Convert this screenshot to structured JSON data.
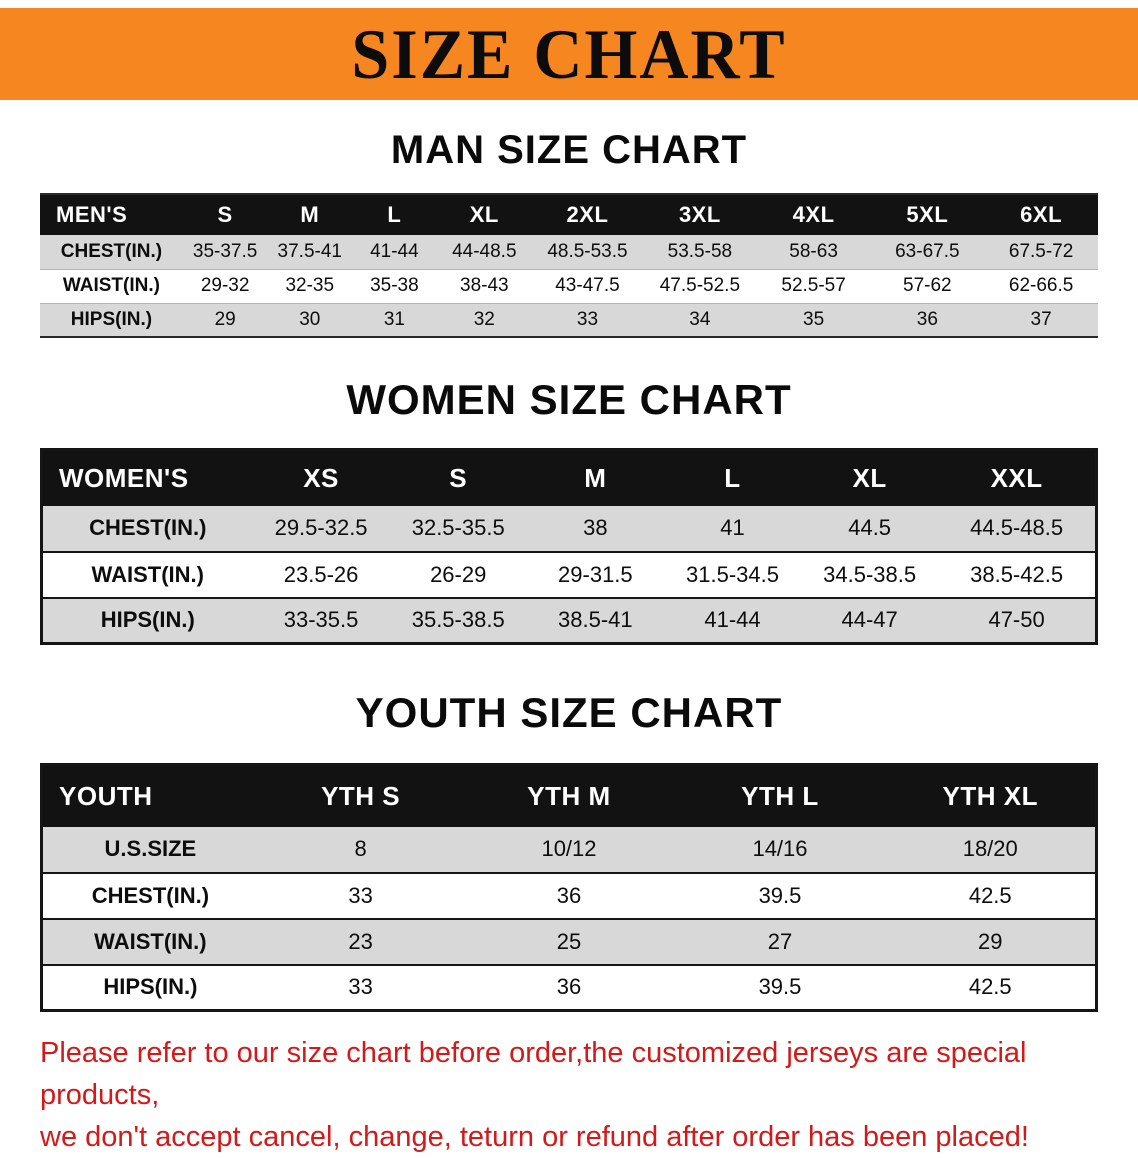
{
  "banner": {
    "title": "SIZE CHART",
    "bg_color": "#F6861F"
  },
  "sections": [
    {
      "id": "men",
      "heading": "MAN SIZE CHART",
      "header": [
        "MEN'S",
        "S",
        "M",
        "L",
        "XL",
        "2XL",
        "3XL",
        "4XL",
        "5XL",
        "6XL"
      ],
      "rows": [
        {
          "label": "CHEST(IN.)",
          "values": [
            "35-37.5",
            "37.5-41",
            "41-44",
            "44-48.5",
            "48.5-53.5",
            "53.5-58",
            "58-63",
            "63-67.5",
            "67.5-72"
          ]
        },
        {
          "label": "WAIST(IN.)",
          "values": [
            "29-32",
            "32-35",
            "35-38",
            "38-43",
            "43-47.5",
            "47.5-52.5",
            "52.5-57",
            "57-62",
            "62-66.5"
          ]
        },
        {
          "label": "HIPS(IN.)",
          "values": [
            "29",
            "30",
            "31",
            "32",
            "33",
            "34",
            "35",
            "36",
            "37"
          ]
        }
      ]
    },
    {
      "id": "women",
      "heading": "WOMEN SIZE CHART",
      "header": [
        "WOMEN'S",
        "XS",
        "S",
        "M",
        "L",
        "XL",
        "XXL"
      ],
      "rows": [
        {
          "label": "CHEST(IN.)",
          "values": [
            "29.5-32.5",
            "32.5-35.5",
            "38",
            "41",
            "44.5",
            "44.5-48.5"
          ]
        },
        {
          "label": "WAIST(IN.)",
          "values": [
            "23.5-26",
            "26-29",
            "29-31.5",
            "31.5-34.5",
            "34.5-38.5",
            "38.5-42.5"
          ]
        },
        {
          "label": "HIPS(IN.)",
          "values": [
            "33-35.5",
            "35.5-38.5",
            "38.5-41",
            "41-44",
            "44-47",
            "47-50"
          ]
        }
      ]
    },
    {
      "id": "youth",
      "heading": "YOUTH SIZE CHART",
      "header": [
        "YOUTH",
        "YTH S",
        "YTH M",
        "YTH L",
        "YTH XL"
      ],
      "rows": [
        {
          "label": "U.S.SIZE",
          "values": [
            "8",
            "10/12",
            "14/16",
            "18/20"
          ]
        },
        {
          "label": "CHEST(IN.)",
          "values": [
            "33",
            "36",
            "39.5",
            "42.5"
          ]
        },
        {
          "label": "WAIST(IN.)",
          "values": [
            "23",
            "25",
            "27",
            "29"
          ]
        },
        {
          "label": "HIPS(IN.)",
          "values": [
            "33",
            "36",
            "39.5",
            "42.5"
          ]
        }
      ]
    }
  ],
  "disclaimer": {
    "line1": "Please refer to our size chart before order,the customized jerseys are special products,",
    "line2": "we don't accept cancel, change, teturn or refund after order has been placed!",
    "color": "#d11a1a"
  }
}
